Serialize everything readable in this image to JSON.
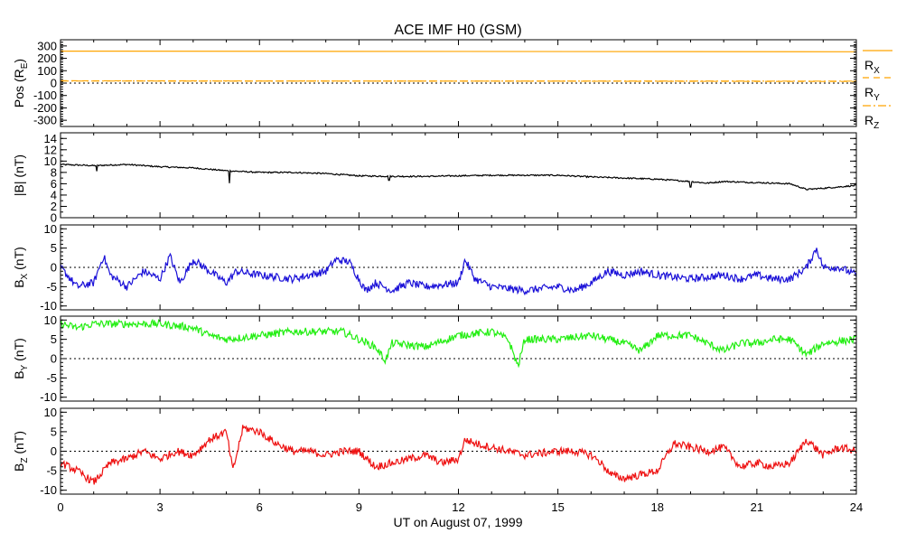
{
  "chart_data": {
    "type": "line",
    "title": "ACE IMF H0 (GSM)",
    "xlabel": "UT on August 07, 1999",
    "xlim": [
      0,
      24
    ],
    "xticks": [
      0,
      3,
      6,
      9,
      12,
      15,
      18,
      21,
      24
    ],
    "xtick_labels": [
      "0",
      "3",
      "6",
      "9",
      "12",
      "15",
      "18",
      "21",
      "24"
    ],
    "grid": false,
    "panels": [
      {
        "id": "pos",
        "ylabel": {
          "main": "Pos (R",
          "sub": "E",
          "tail": ")"
        },
        "ylim": [
          -350,
          350
        ],
        "yticks": [
          300,
          200,
          100,
          0,
          -100,
          -200,
          -300
        ],
        "ytick_labels": [
          "300",
          "200",
          "100",
          "0",
          "-100",
          "-200",
          "-300"
        ],
        "zero_line": true,
        "series": [
          {
            "name": "RX",
            "label_main": "R",
            "label_sub": "X",
            "color": "#ffa500",
            "style": "solid",
            "x": [
              0,
              24
            ],
            "y": [
              258,
              253
            ]
          },
          {
            "name": "RY",
            "label_main": "R",
            "label_sub": "Y",
            "color": "#ffa500",
            "style": "dashed",
            "x": [
              0,
              24
            ],
            "y": [
              19,
              13
            ]
          },
          {
            "name": "RZ",
            "label_main": "R",
            "label_sub": "Z",
            "color": "#ffa500",
            "style": "dashdot",
            "x": [
              0,
              24
            ],
            "y": [
              17,
              16
            ]
          }
        ]
      },
      {
        "id": "btot",
        "ylabel": {
          "main": "|B| (nT)",
          "sub": "",
          "tail": ""
        },
        "ylim": [
          0,
          15
        ],
        "yticks": [
          14,
          12,
          10,
          8,
          6,
          4,
          2,
          0
        ],
        "ytick_labels": [
          "14",
          "12",
          "10",
          "8",
          "6",
          "4",
          "2",
          "0"
        ],
        "zero_line": false,
        "series": [
          {
            "name": "|B|",
            "color": "#000000",
            "style": "solid",
            "x": [
              0,
              1,
              2,
              3,
              4,
              5,
              6,
              7,
              8,
              9,
              10,
              11,
              12,
              13,
              14,
              15,
              16,
              17,
              18,
              19,
              19.5,
              20,
              21,
              22,
              22.5,
              23,
              24
            ],
            "y": [
              9.4,
              9.2,
              9.4,
              9.0,
              8.8,
              8.3,
              8.0,
              8.0,
              7.8,
              7.4,
              7.3,
              7.3,
              7.4,
              7.5,
              7.5,
              7.5,
              7.2,
              7.0,
              6.8,
              6.4,
              6.1,
              6.4,
              6.2,
              6.0,
              5.0,
              5.2,
              5.7
            ],
            "dips": [
              [
                1.1,
                8.2
              ],
              [
                5.1,
                6.1
              ],
              [
                9.9,
                6.6
              ],
              [
                19.0,
                5.4
              ]
            ]
          }
        ]
      },
      {
        "id": "bx",
        "ylabel": {
          "main": "B",
          "sub": "X",
          "tail": " (nT)"
        },
        "ylim": [
          -11,
          11
        ],
        "yticks": [
          10,
          5,
          0,
          -5,
          -10
        ],
        "ytick_labels": [
          "10",
          "5",
          "0",
          "-5",
          "-10"
        ],
        "zero_line": true,
        "series": [
          {
            "name": "BX",
            "color": "#1a10d8",
            "style": "solid",
            "x": [
              0,
              0.5,
              1,
              1.3,
              1.5,
              2,
              2.5,
              3,
              3.3,
              3.6,
              4,
              4.5,
              5,
              5.3,
              6,
              7,
              8,
              8.3,
              8.7,
              9.2,
              9.5,
              10,
              10.5,
              11,
              12,
              12.2,
              12.5,
              13,
              14,
              15,
              15.5,
              16,
              16.5,
              17,
              17.5,
              18,
              19,
              20,
              20.5,
              21,
              21.5,
              22,
              22.5,
              22.8,
              23,
              23.5,
              24
            ],
            "y": [
              0,
              -5,
              -4,
              3,
              -2,
              -5,
              -1,
              -3,
              3,
              -4,
              2,
              -1,
              -4,
              -1,
              -2,
              -3,
              -1,
              2,
              1.5,
              -6,
              -4,
              -6,
              -4,
              -5,
              -4,
              2,
              -3,
              -5,
              -6,
              -5,
              -6,
              -4,
              -1,
              -2,
              -1,
              -2,
              -3,
              -2,
              -3,
              -2,
              -3,
              -3,
              0,
              5,
              0,
              0,
              -2
            ]
          }
        ]
      },
      {
        "id": "by",
        "ylabel": {
          "main": "B",
          "sub": "Y",
          "tail": " (nT)"
        },
        "ylim": [
          -11,
          11
        ],
        "yticks": [
          10,
          5,
          0,
          -5,
          -10
        ],
        "ytick_labels": [
          "10",
          "5",
          "0",
          "-5",
          "-10"
        ],
        "zero_line": true,
        "series": [
          {
            "name": "BY",
            "color": "#22ee11",
            "style": "solid",
            "x": [
              0,
              0.5,
              1,
              1.5,
              2,
              3,
              4,
              4.5,
              5,
              6,
              7,
              8,
              8.5,
              9,
              9.5,
              9.8,
              10,
              11,
              12,
              13,
              13.5,
              13.8,
              14,
              15,
              16,
              16.5,
              17,
              17.5,
              18,
              19,
              19.5,
              20,
              20.5,
              21,
              21.5,
              22,
              22.5,
              23,
              24
            ],
            "y": [
              9,
              8,
              9,
              9,
              9,
              9,
              8,
              6,
              5,
              6,
              7,
              7,
              7,
              5,
              3,
              -0.5,
              4,
              3,
              6,
              7,
              5,
              -2,
              5,
              5,
              6,
              5,
              4,
              2,
              6,
              6,
              4,
              2,
              4,
              4,
              5,
              5,
              1,
              4,
              5
            ]
          }
        ]
      },
      {
        "id": "bz",
        "ylabel": {
          "main": "B",
          "sub": "Z",
          "tail": " (nT)"
        },
        "ylim": [
          -11,
          11
        ],
        "yticks": [
          10,
          5,
          0,
          -5,
          -10
        ],
        "ytick_labels": [
          "10",
          "5",
          "0",
          "-5",
          "-10"
        ],
        "zero_line": true,
        "series": [
          {
            "name": "BZ",
            "color": "#ee1111",
            "style": "solid",
            "x": [
              0,
              0.5,
              1,
              1.5,
              2,
              2.5,
              3,
              3.5,
              4,
              4.5,
              5,
              5.2,
              5.5,
              6,
              6.5,
              7,
              7.5,
              8,
              8.5,
              9,
              9.5,
              10,
              10.5,
              11,
              11.5,
              12,
              12.2,
              12.5,
              13,
              13.5,
              14,
              15,
              15.5,
              16,
              16.3,
              16.6,
              17,
              17.5,
              18,
              18.5,
              19,
              19.5,
              20,
              20.5,
              21,
              21.5,
              22,
              22.5,
              23,
              23.5,
              24
            ],
            "y": [
              -3,
              -5,
              -8,
              -3,
              -2,
              0,
              -2,
              0,
              -1,
              3,
              5,
              -5,
              6,
              5,
              2,
              0,
              0,
              -1,
              0,
              0,
              -4,
              -3,
              -2,
              -1,
              -3,
              -2,
              3,
              2,
              1,
              0,
              -1,
              0,
              0,
              -1,
              -3,
              -6,
              -7,
              -6,
              -5,
              2,
              1,
              0,
              1,
              -4,
              -3,
              -4,
              -3,
              3,
              -1,
              1,
              0
            ]
          }
        ]
      }
    ]
  }
}
